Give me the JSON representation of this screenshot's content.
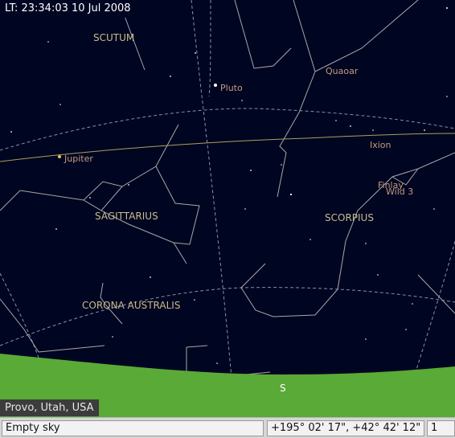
{
  "clock": {
    "text": "LT: 23:34:03   10 Jul 2008"
  },
  "location": "Provo, Utah,  USA",
  "horizon": {
    "direction_label": "S"
  },
  "constellations": {
    "scutum": "SCUTUM",
    "sagittarius": "SAGITTARIUS",
    "scorpius": "SCORPIUS",
    "corona_australis": "CORONA AUSTRALIS"
  },
  "objects": {
    "pluto": "Pluto",
    "quaoar": "Quaoar",
    "ixion": "Ixion",
    "jupiter": "Jupiter",
    "finlay": "Finlay",
    "wild3": "Wild 3"
  },
  "statusbar": {
    "object": "Empty sky",
    "coordinates": "+195° 02' 17\",  +42° 42' 12\"",
    "zoom": "1"
  },
  "colors": {
    "sky": "#000521",
    "ground": "#59aa36",
    "constellation_lines": "#a8a8a8",
    "constellation_names": "#c6bd8e",
    "planet_labels": "#c49a7e",
    "ecliptic": "#a8a160"
  }
}
